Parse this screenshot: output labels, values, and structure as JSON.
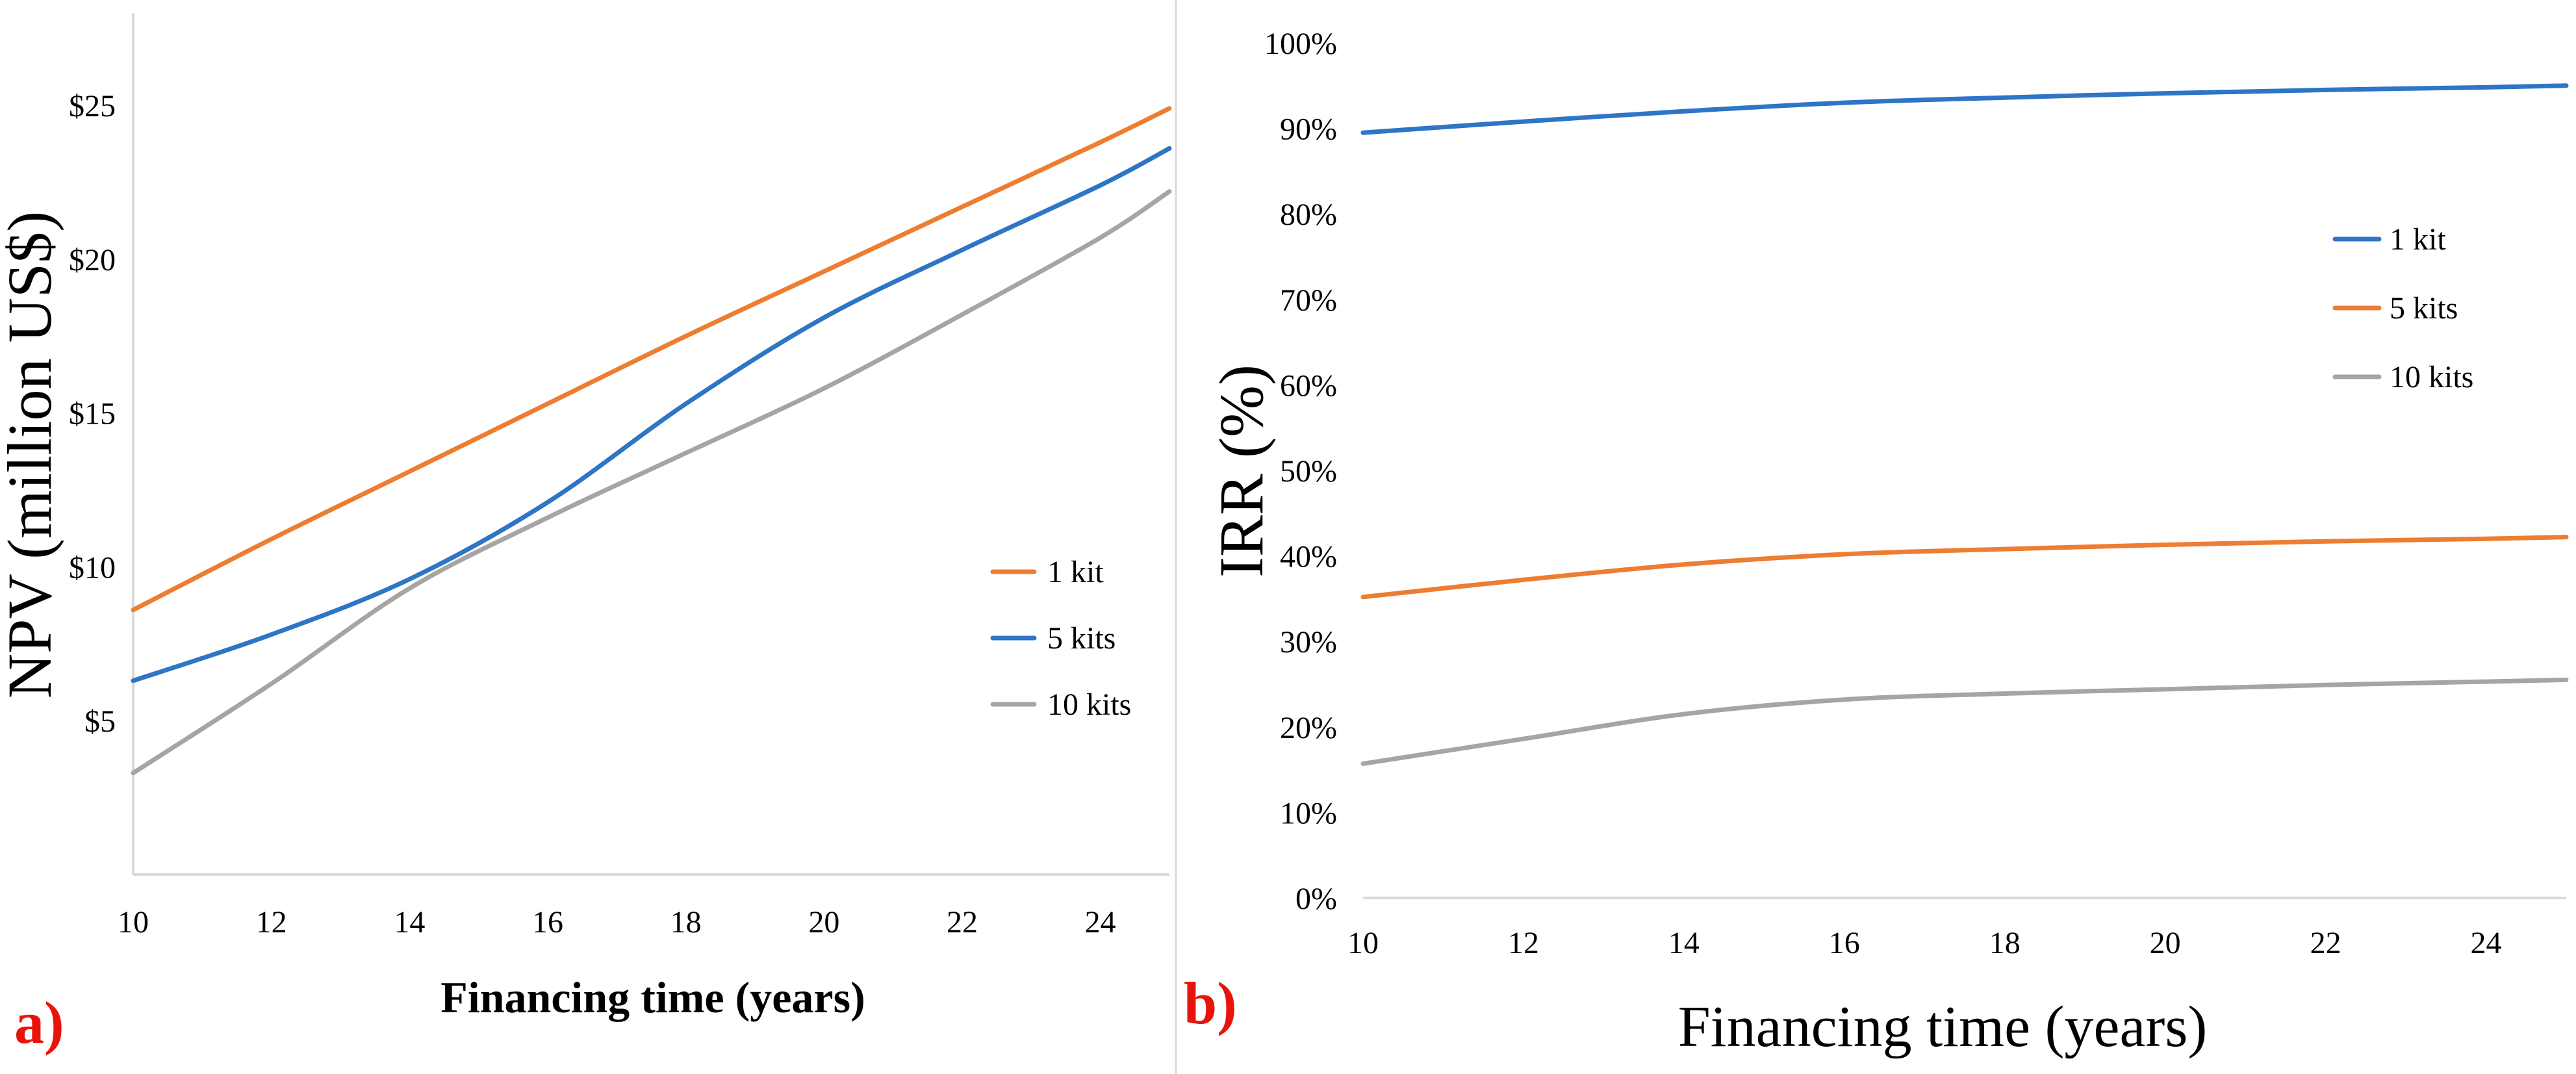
{
  "chart_data": [
    {
      "panel_label": "a)",
      "type": "line",
      "xlabel": "Financing time (years)",
      "ylabel": "NPV (million US$)",
      "xlim": [
        10,
        25
      ],
      "ylim": [
        0,
        28
      ],
      "x_ticks": [
        10,
        12,
        14,
        16,
        18,
        20,
        22,
        24
      ],
      "x_tick_labels": [
        "10",
        "12",
        "14",
        "16",
        "18",
        "20",
        "22",
        "24"
      ],
      "y_ticks": [
        5,
        10,
        15,
        20,
        25
      ],
      "y_tick_labels": [
        "$5",
        "$10",
        "$15",
        "$20",
        "$25"
      ],
      "legend_position": "right",
      "series": [
        {
          "name": "1 kit",
          "color": "#ed7d31",
          "x": [
            10,
            12,
            14,
            16,
            18,
            20,
            22,
            24,
            25
          ],
          "y": [
            8.6,
            10.9,
            13.1,
            15.3,
            17.5,
            19.6,
            21.7,
            23.8,
            24.9
          ]
        },
        {
          "name": "5 kits",
          "color": "#2e75c6",
          "x": [
            10,
            12,
            14,
            16,
            18,
            20,
            22,
            24,
            25
          ],
          "y": [
            6.3,
            7.8,
            9.6,
            12.1,
            15.3,
            18.1,
            20.3,
            22.4,
            23.6
          ]
        },
        {
          "name": "10 kits",
          "color": "#a5a5a5",
          "x": [
            10,
            12,
            14,
            16,
            18,
            20,
            22,
            24,
            25
          ],
          "y": [
            3.3,
            6.2,
            9.3,
            11.6,
            13.7,
            15.8,
            18.2,
            20.7,
            22.2
          ]
        }
      ]
    },
    {
      "panel_label": "b)",
      "type": "line",
      "xlabel": "Financing time (years)",
      "ylabel": "IRR (%)",
      "xlim": [
        10,
        25
      ],
      "ylim": [
        0,
        100
      ],
      "x_ticks": [
        10,
        12,
        14,
        16,
        18,
        20,
        22,
        24
      ],
      "x_tick_labels": [
        "10",
        "12",
        "14",
        "16",
        "18",
        "20",
        "22",
        "24"
      ],
      "y_ticks": [
        0,
        10,
        20,
        30,
        40,
        50,
        60,
        70,
        80,
        90,
        100
      ],
      "y_tick_labels": [
        "0%",
        "10%",
        "20%",
        "30%",
        "40%",
        "50%",
        "60%",
        "70%",
        "80%",
        "90%",
        "100%"
      ],
      "legend_position": "right",
      "series": [
        {
          "name": "1 kit",
          "color": "#2e75c6",
          "x": [
            10,
            12,
            14,
            16,
            18,
            20,
            22,
            24,
            25
          ],
          "y": [
            89.5,
            90.8,
            92.0,
            93.0,
            93.6,
            94.1,
            94.5,
            94.8,
            95.0
          ]
        },
        {
          "name": "5 kits",
          "color": "#ed7d31",
          "x": [
            10,
            12,
            14,
            16,
            18,
            20,
            22,
            24,
            25
          ],
          "y": [
            35.2,
            37.2,
            39.0,
            40.2,
            40.8,
            41.3,
            41.7,
            42.0,
            42.2
          ]
        },
        {
          "name": "10 kits",
          "color": "#a5a5a5",
          "x": [
            10,
            12,
            14,
            16,
            18,
            20,
            22,
            24,
            25
          ],
          "y": [
            15.7,
            18.6,
            21.5,
            23.2,
            23.9,
            24.4,
            24.9,
            25.3,
            25.5
          ]
        }
      ]
    }
  ]
}
